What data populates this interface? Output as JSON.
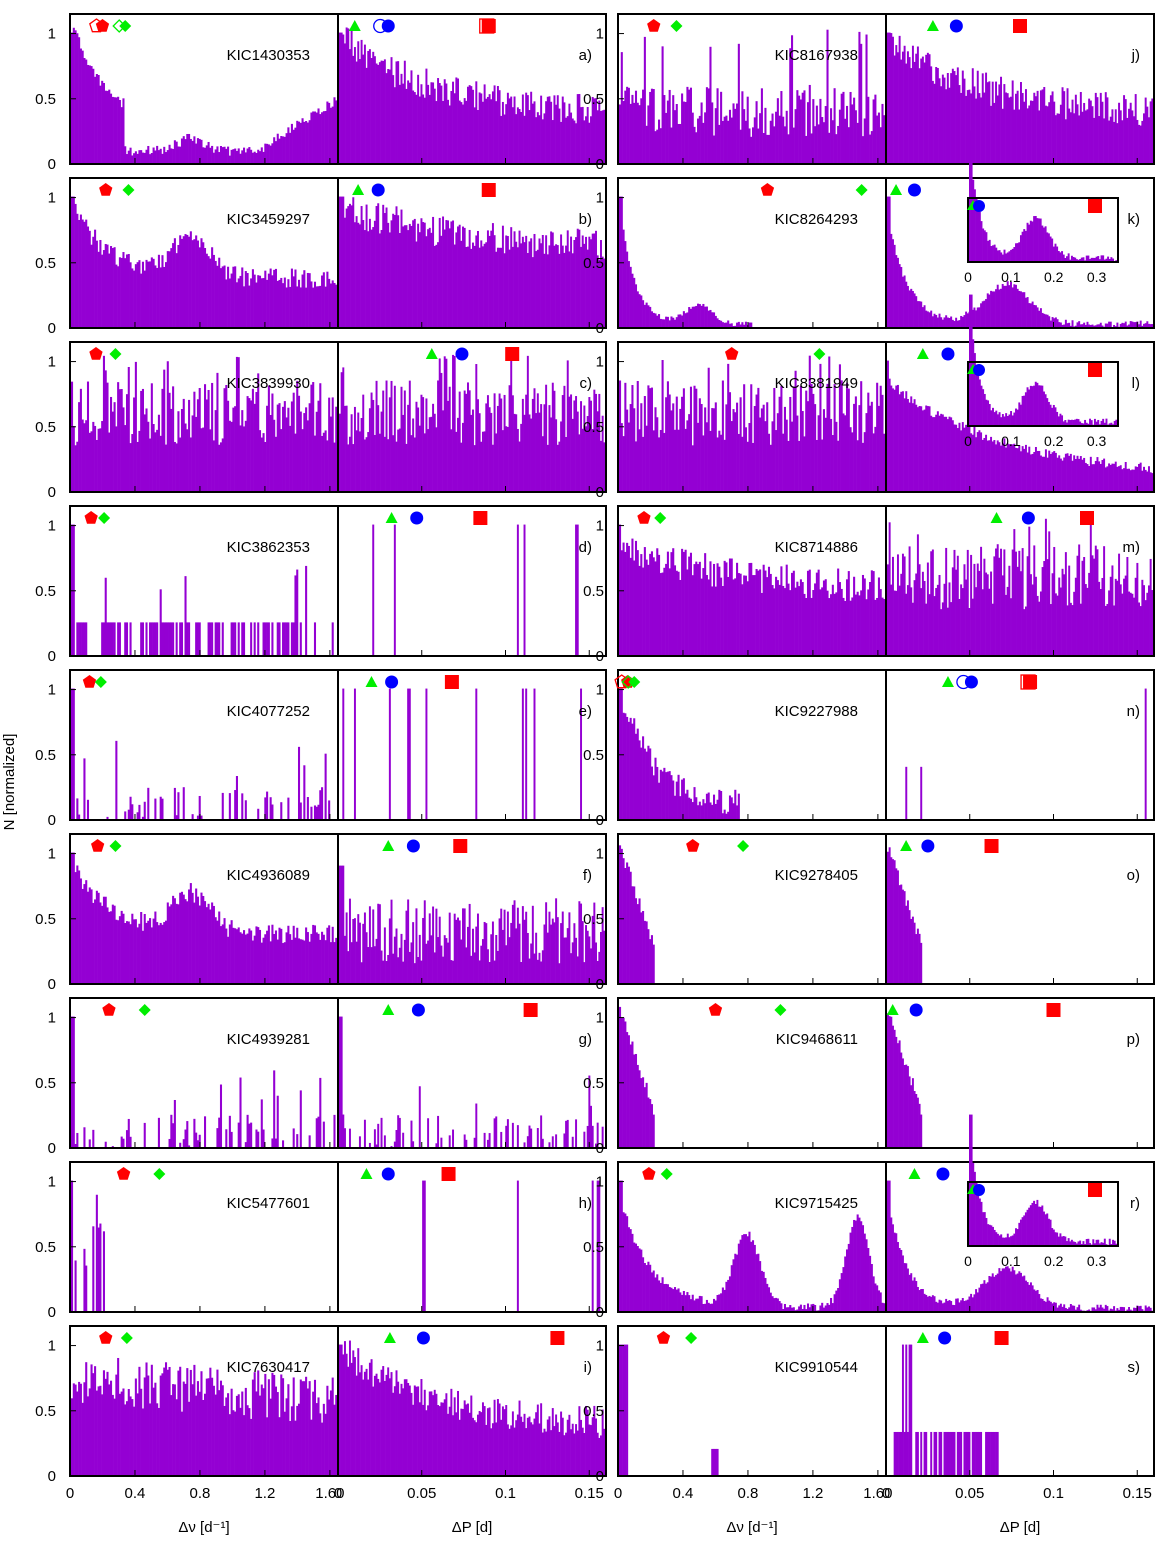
{
  "chart_data": {
    "type": "bar",
    "ylabel": "N [normalized]",
    "xlabels": {
      "dnu": "Δν [d⁻¹]",
      "dp": "ΔP [d]"
    },
    "x_ticks": {
      "dnu": [
        "0",
        "0.4",
        "0.8",
        "1.2",
        "1.60"
      ],
      "dp": [
        "0",
        "0.05",
        "0.1",
        "0.15"
      ]
    },
    "y_ticks": [
      "0",
      "0.5",
      "1"
    ],
    "ylim": [
      0,
      1.15
    ],
    "xlim": {
      "dnu": [
        0,
        1.65
      ],
      "dp": [
        0,
        0.16
      ]
    },
    "bar_color": "#9400d3",
    "marker_colors": {
      "pentagon": "#ff0000",
      "diamond": "#00ee00",
      "triangle": "#00ee00",
      "circle": "#0000ff",
      "square": "#ff0000"
    },
    "inset_x_ticks": [
      "0",
      "0.1",
      "0.2",
      "0.3"
    ],
    "stars": [
      {
        "name": "KIC1430353",
        "label": "a)",
        "dnu": {
          "shape": "valley",
          "pent": 0.2,
          "dia": 0.34,
          "open": true
        },
        "dp": {
          "shape": "decay",
          "tri": 0.01,
          "cir": 0.03,
          "sq": 0.09,
          "open": true
        }
      },
      {
        "name": "KIC3459297",
        "label": "b)",
        "dnu": {
          "shape": "hump",
          "pent": 0.22,
          "dia": 0.36
        },
        "dp": {
          "shape": "flat",
          "tri": 0.012,
          "cir": 0.024,
          "sq": 0.09
        }
      },
      {
        "name": "KIC3839930",
        "label": "c)",
        "dnu": {
          "shape": "noise",
          "pent": 0.16,
          "dia": 0.28
        },
        "dp": {
          "shape": "noise",
          "tri": 0.056,
          "cir": 0.074,
          "sq": 0.104
        }
      },
      {
        "name": "KIC3862353",
        "label": "d)",
        "dnu": {
          "shape": "sparse",
          "pent": 0.13,
          "dia": 0.21
        },
        "dp": {
          "shape": "spikes",
          "tri": 0.032,
          "cir": 0.047,
          "sq": 0.085
        }
      },
      {
        "name": "KIC4077252",
        "label": "e)",
        "dnu": {
          "shape": "sparse_low",
          "pent": 0.12,
          "dia": 0.19
        },
        "dp": {
          "shape": "spikes",
          "tri": 0.02,
          "cir": 0.032,
          "sq": 0.068
        }
      },
      {
        "name": "KIC4936089",
        "label": "f)",
        "dnu": {
          "shape": "hump",
          "pent": 0.17,
          "dia": 0.28
        },
        "dp": {
          "shape": "noise_low",
          "tri": 0.03,
          "cir": 0.045,
          "sq": 0.073
        }
      },
      {
        "name": "KIC4939281",
        "label": "g)",
        "dnu": {
          "shape": "sparse_low",
          "pent": 0.24,
          "dia": 0.46
        },
        "dp": {
          "shape": "sparse_low",
          "tri": 0.03,
          "cir": 0.048,
          "sq": 0.115
        }
      },
      {
        "name": "KIC5477601",
        "label": "h)",
        "dnu": {
          "shape": "spike_start",
          "pent": 0.33,
          "dia": 0.55
        },
        "dp": {
          "shape": "spikes_right",
          "tri": 0.017,
          "cir": 0.03,
          "sq": 0.066
        }
      },
      {
        "name": "KIC7630417",
        "label": "i)",
        "dnu": {
          "shape": "high_noise",
          "pent": 0.22,
          "dia": 0.35
        },
        "dp": {
          "shape": "decay",
          "tri": 0.031,
          "cir": 0.051,
          "sq": 0.131
        }
      },
      {
        "name": "KIC8167938",
        "label": "j)",
        "dnu": {
          "shape": "noise_spikes",
          "pent": 0.22,
          "dia": 0.36
        },
        "dp": {
          "shape": "decay",
          "tri": 0.028,
          "cir": 0.042,
          "sq": 0.08
        }
      },
      {
        "name": "KIC8264293",
        "label": "k)",
        "dnu": {
          "shape": "decay_small",
          "pent": 0.92,
          "dia": 1.5
        },
        "dp": {
          "shape": "decay_bump",
          "tri": 0.006,
          "cir": 0.017,
          "sq": null,
          "inset": true
        }
      },
      {
        "name": "KIC8381949",
        "label": "l)",
        "dnu": {
          "shape": "noise",
          "pent": 0.7,
          "dia": 1.24
        },
        "dp": {
          "shape": "decay_long",
          "tri": 0.022,
          "cir": 0.037,
          "sq": null,
          "inset": true
        }
      },
      {
        "name": "KIC8714886",
        "label": "m)",
        "dnu": {
          "shape": "decay_noise",
          "pent": 0.16,
          "dia": 0.26
        },
        "dp": {
          "shape": "noise",
          "tri": 0.066,
          "cir": 0.085,
          "sq": 0.12
        }
      },
      {
        "name": "KIC9227988",
        "label": "n)",
        "dnu": {
          "shape": "steep_decay",
          "pent": 0.06,
          "dia": 0.1,
          "open": true
        },
        "dp": {
          "shape": "rare_spikes",
          "tri": 0.037,
          "cir": 0.051,
          "sq": 0.086,
          "open": true
        }
      },
      {
        "name": "KIC9278405",
        "label": "o)",
        "dnu": {
          "shape": "narrow",
          "pent": 0.46,
          "dia": 0.77
        },
        "dp": {
          "shape": "narrow",
          "tri": 0.012,
          "cir": 0.025,
          "sq": 0.063
        }
      },
      {
        "name": "KIC9468611",
        "label": "p)",
        "dnu": {
          "shape": "narrow",
          "pent": 0.6,
          "dia": 1.0
        },
        "dp": {
          "shape": "narrow",
          "tri": 0.004,
          "cir": 0.018,
          "sq": 0.1
        }
      },
      {
        "name": "KIC9715425",
        "label": "r)",
        "dnu": {
          "shape": "double_hump",
          "pent": 0.19,
          "dia": 0.3
        },
        "dp": {
          "shape": "decay_bump",
          "tri": 0.017,
          "cir": 0.034,
          "sq": null,
          "inset": true
        }
      },
      {
        "name": "KIC9910544",
        "label": "s)",
        "dnu": {
          "shape": "tiny",
          "pent": 0.28,
          "dia": 0.45
        },
        "dp": {
          "shape": "blocky",
          "tri": 0.022,
          "cir": 0.035,
          "sq": 0.069
        }
      }
    ]
  }
}
